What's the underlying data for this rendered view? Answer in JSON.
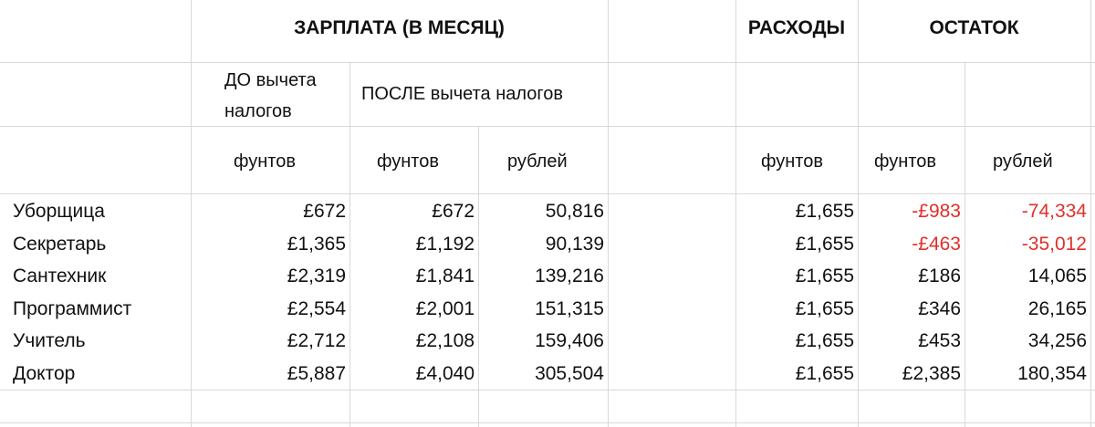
{
  "header": {
    "salary": "ЗАРПЛАТА (В МЕСЯЦ)",
    "expenses": "РАСХОДЫ",
    "remainder": "ОСТАТОК"
  },
  "subheader": {
    "before_tax_line1": "ДО вычета",
    "before_tax_line2": "налогов",
    "after_tax": "ПОСЛЕ вычета налогов"
  },
  "units": {
    "before_pounds": "фунтов",
    "after_pounds": "фунтов",
    "after_rubles": "рублей",
    "expenses_pounds": "фунтов",
    "remainder_pounds": "фунтов",
    "remainder_rubles": "рублей"
  },
  "rows": [
    {
      "name": "Уборщица",
      "before": "£672",
      "after_gbp": "£672",
      "after_rub": "50,816",
      "expenses": "£1,655",
      "rem_gbp": "-£983",
      "rem_rub": "-74,334",
      "negative": true
    },
    {
      "name": "Секретарь",
      "before": "£1,365",
      "after_gbp": "£1,192",
      "after_rub": "90,139",
      "expenses": "£1,655",
      "rem_gbp": "-£463",
      "rem_rub": "-35,012",
      "negative": true
    },
    {
      "name": "Сантехник",
      "before": "£2,319",
      "after_gbp": "£1,841",
      "after_rub": "139,216",
      "expenses": "£1,655",
      "rem_gbp": "£186",
      "rem_rub": "14,065",
      "negative": false
    },
    {
      "name": "Программист",
      "before": "£2,554",
      "after_gbp": "£2,001",
      "after_rub": "151,315",
      "expenses": "£1,655",
      "rem_gbp": "£346",
      "rem_rub": "26,165",
      "negative": false
    },
    {
      "name": "Учитель",
      "before": "£2,712",
      "after_gbp": "£2,108",
      "after_rub": "159,406",
      "expenses": "£1,655",
      "rem_gbp": "£453",
      "rem_rub": "34,256",
      "negative": false
    },
    {
      "name": "Доктор",
      "before": "£5,887",
      "after_gbp": "£4,040",
      "after_rub": "305,504",
      "expenses": "£1,655",
      "rem_gbp": "£2,385",
      "rem_rub": "180,354",
      "negative": false
    }
  ],
  "colors": {
    "negative": "#e0302a",
    "grid": "#d9d9d9"
  }
}
